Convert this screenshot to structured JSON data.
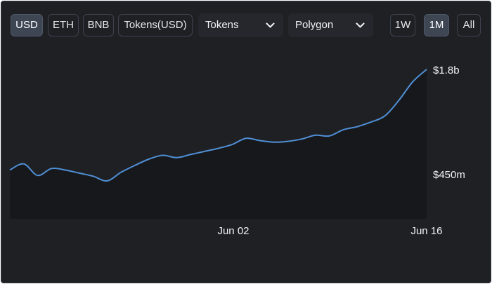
{
  "currency_buttons": [
    {
      "label": "USD",
      "active": true
    },
    {
      "label": "ETH",
      "active": false
    },
    {
      "label": "BNB",
      "active": false
    },
    {
      "label": "Tokens(USD)",
      "active": false
    }
  ],
  "metric_dropdown": {
    "value": "Tokens",
    "icon": "chevron-down-icon"
  },
  "network_dropdown": {
    "value": "Polygon",
    "icon": "chevron-down-icon"
  },
  "range_buttons": [
    {
      "label": "1W",
      "active": false
    },
    {
      "label": "1M",
      "active": true
    },
    {
      "label": "All",
      "active": false
    }
  ],
  "colors": {
    "background": "#1f2024",
    "line": "#4f8fd6",
    "area": "#17181b",
    "active_button": "#3e4654",
    "text": "#e6e8ec"
  },
  "chart_data": {
    "type": "area",
    "title": "",
    "xlabel": "",
    "ylabel": "",
    "x_ticks": [
      "Jun 02",
      "Jun 16"
    ],
    "y_ticks": [
      "$450m",
      "$1.8b"
    ],
    "y_tick_values": [
      450000000,
      1800000000
    ],
    "grid": false,
    "legend": "none",
    "series": [
      {
        "x": [
          "2024-05-17",
          "2024-05-18",
          "2024-05-19",
          "2024-05-20",
          "2024-05-21",
          "2024-05-22",
          "2024-05-23",
          "2024-05-24",
          "2024-05-25",
          "2024-05-26",
          "2024-05-27",
          "2024-05-28",
          "2024-05-29",
          "2024-05-30",
          "2024-05-31",
          "2024-06-01",
          "2024-06-02",
          "2024-06-03",
          "2024-06-04",
          "2024-06-05",
          "2024-06-06",
          "2024-06-07",
          "2024-06-08",
          "2024-06-09",
          "2024-06-10",
          "2024-06-11",
          "2024-06-12",
          "2024-06-13",
          "2024-06-14",
          "2024-06-15",
          "2024-06-16"
        ],
        "y": [
          500000000,
          580000000,
          430000000,
          520000000,
          500000000,
          460000000,
          420000000,
          360000000,
          470000000,
          560000000,
          640000000,
          690000000,
          660000000,
          700000000,
          740000000,
          780000000,
          830000000,
          910000000,
          880000000,
          860000000,
          870000000,
          900000000,
          950000000,
          940000000,
          1020000000,
          1060000000,
          1120000000,
          1200000000,
          1400000000,
          1640000000,
          1800000000
        ]
      }
    ]
  }
}
